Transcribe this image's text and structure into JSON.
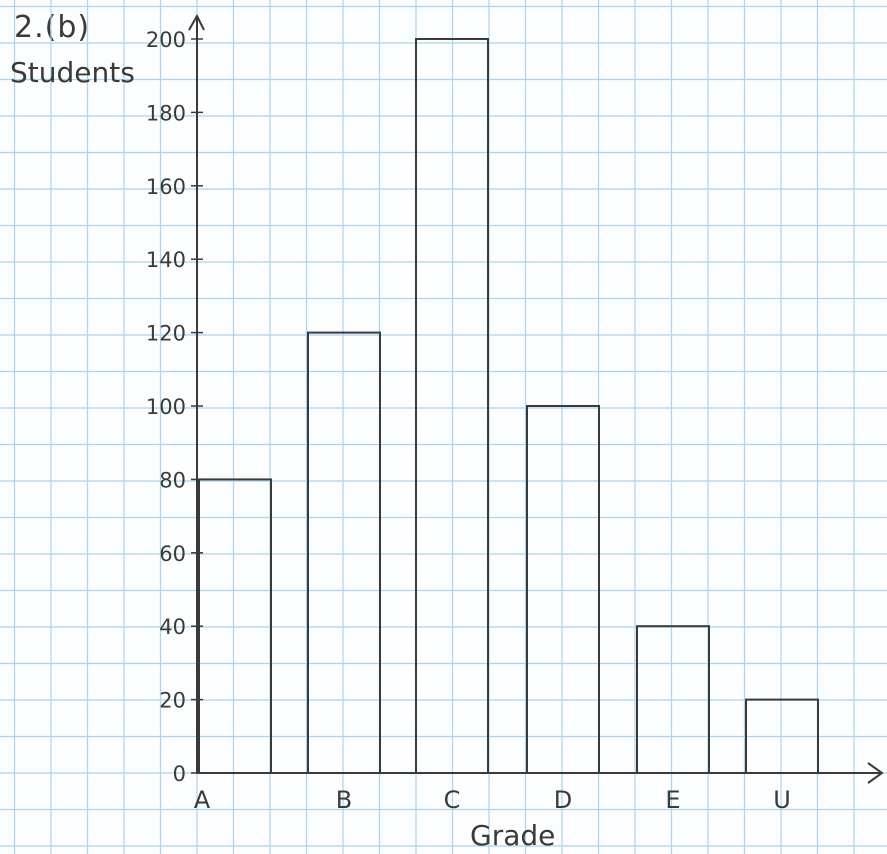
{
  "question_label": "2.(b)",
  "chart_data": {
    "type": "bar",
    "title": "",
    "xlabel": "Grade",
    "ylabel": "Students",
    "categories": [
      "A",
      "B",
      "C",
      "D",
      "E",
      "U"
    ],
    "values": [
      80,
      120,
      200,
      100,
      40,
      20
    ],
    "ylim": [
      0,
      200
    ],
    "yticks": [
      0,
      20,
      40,
      60,
      80,
      100,
      120,
      140,
      160,
      180,
      200
    ],
    "ytick_labels": [
      "0",
      "20",
      "40",
      "60",
      "80",
      "100",
      "120",
      "140",
      "160",
      "180",
      "200"
    ],
    "grid": true,
    "legend": "none"
  },
  "colors": {
    "grid": "#a9d6ec",
    "ink": "#3a3a3a",
    "paper": "#fbfdff"
  }
}
